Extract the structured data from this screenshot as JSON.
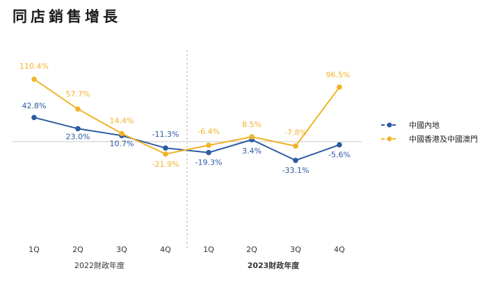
{
  "title": "同店銷售增長",
  "chart_data": {
    "type": "line",
    "title": "同店銷售增長",
    "categories": [
      "1Q",
      "2Q",
      "3Q",
      "4Q",
      "1Q",
      "2Q",
      "3Q",
      "4Q"
    ],
    "groups": [
      {
        "label": "2022財政年度",
        "bold": false
      },
      {
        "label": "2023財政年度",
        "bold": true
      }
    ],
    "ylim": [
      -60,
      120
    ],
    "series": [
      {
        "name": "中國內地",
        "color": "#2b5aa0",
        "values": [
          42.8,
          23.0,
          10.7,
          -11.3,
          -19.3,
          3.4,
          -33.1,
          -5.6
        ],
        "labels": [
          "42.8%",
          "23.0%",
          "10.7%",
          "-11.3%",
          "-19.3%",
          "3.4%",
          "-33.1%",
          "-5.6%"
        ]
      },
      {
        "name": "中國香港及中國澳門",
        "color": "#f0b429",
        "values": [
          110.4,
          57.7,
          14.4,
          -21.9,
          -6.4,
          8.5,
          -7.8,
          96.5
        ],
        "labels": [
          "110.4%",
          "57.7%",
          "14.4%",
          "-21.9%",
          "-6.4%",
          "8.5%",
          "-7.8%",
          "96.5%"
        ]
      }
    ]
  }
}
